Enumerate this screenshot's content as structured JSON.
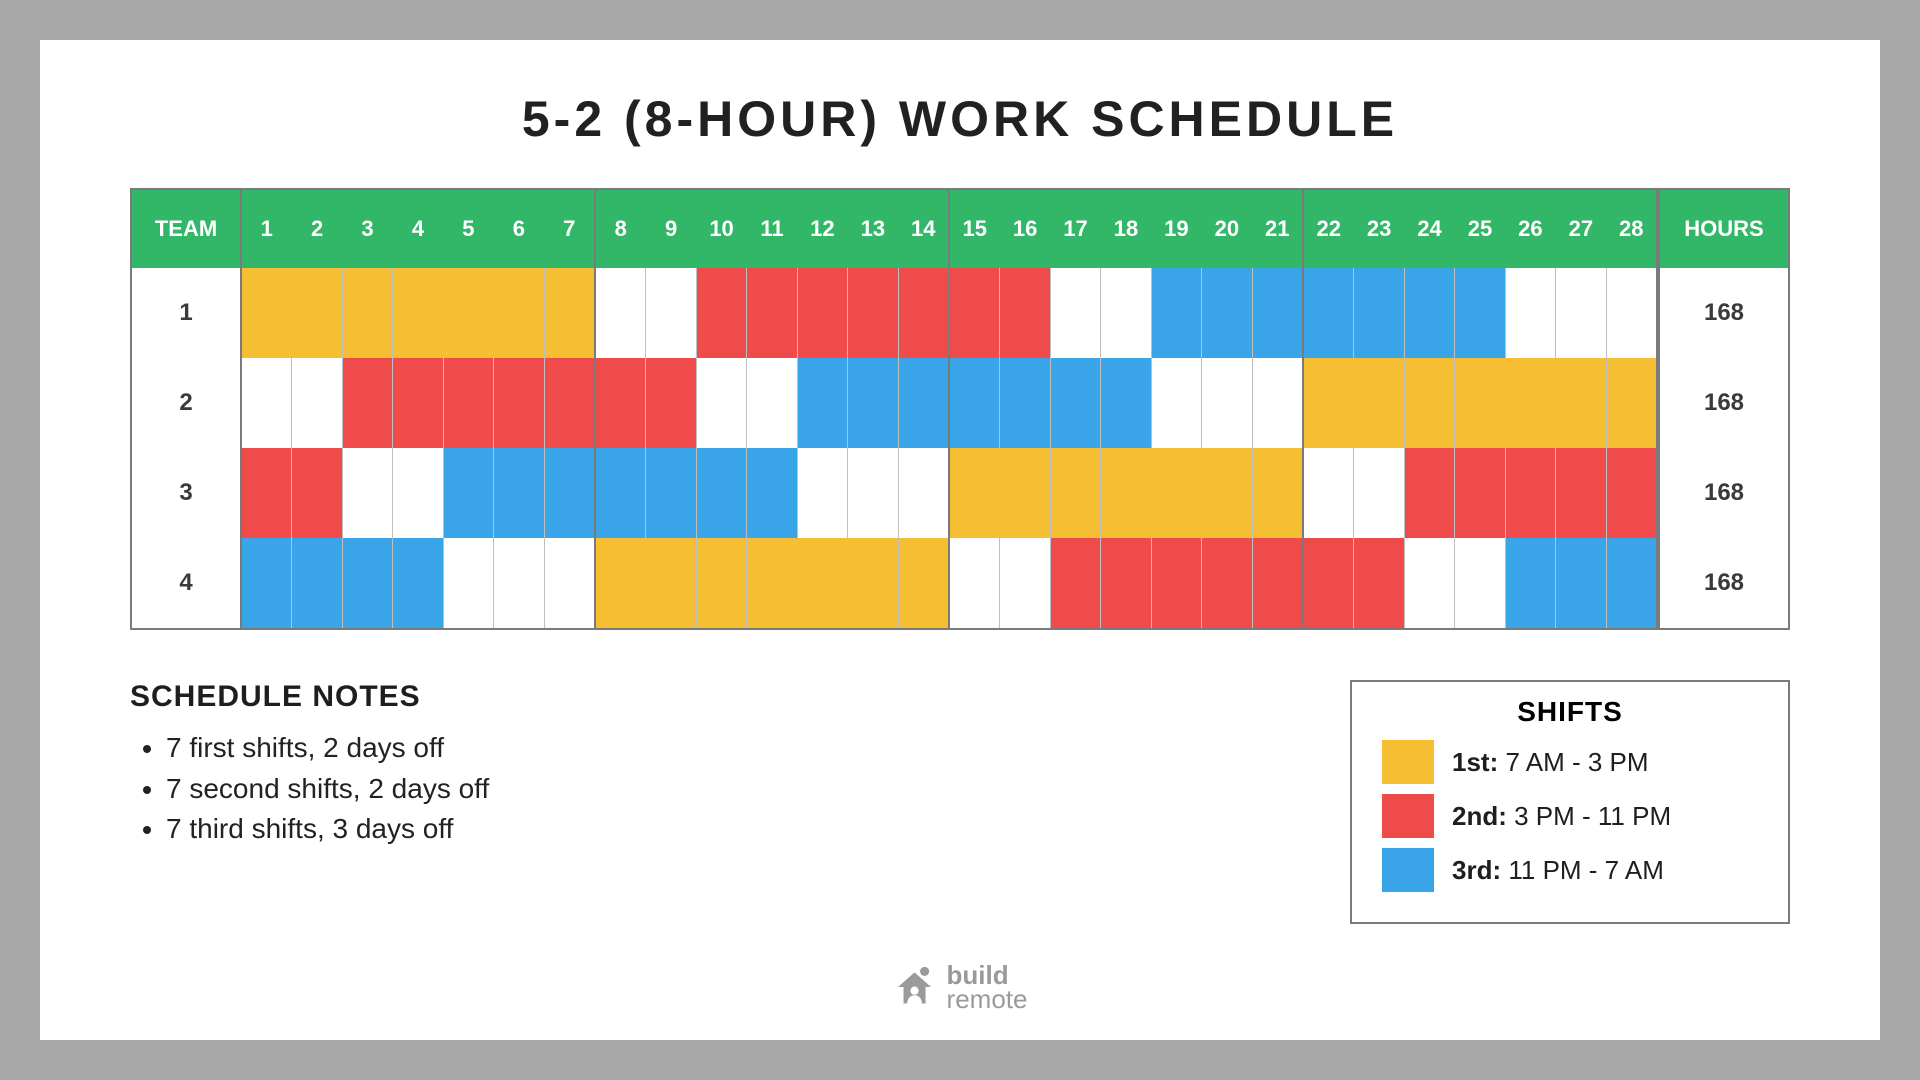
{
  "title": "5-2 (8-HOUR) WORK SCHEDULE",
  "colors": {
    "page_bg": "#a8a8a8",
    "canvas_bg": "#ffffff",
    "header_bg": "#32b768",
    "border": "#7a7a7a",
    "cell_border": "#bfbfbf",
    "text": "#1e1e1e",
    "shift_1": "#f6bf33",
    "shift_2": "#ef4b4b",
    "shift_3": "#3aa4e8",
    "off": "#ffffff",
    "logo": "#9a9a9a"
  },
  "table": {
    "header": {
      "team": "TEAM",
      "hours": "HOURS",
      "days": [
        1,
        2,
        3,
        4,
        5,
        6,
        7,
        8,
        9,
        10,
        11,
        12,
        13,
        14,
        15,
        16,
        17,
        18,
        19,
        20,
        21,
        22,
        23,
        24,
        25,
        26,
        27,
        28
      ],
      "weeks": [
        [
          1,
          2,
          3,
          4,
          5,
          6,
          7
        ],
        [
          8,
          9,
          10,
          11,
          12,
          13,
          14
        ],
        [
          15,
          16,
          17,
          18,
          19,
          20,
          21
        ],
        [
          22,
          23,
          24,
          25,
          26,
          27,
          28
        ]
      ]
    },
    "rows": [
      {
        "team": "1",
        "hours": "168",
        "shifts": [
          1,
          1,
          1,
          1,
          1,
          1,
          1,
          0,
          0,
          2,
          2,
          2,
          2,
          2,
          2,
          2,
          0,
          0,
          3,
          3,
          3,
          3,
          3,
          3,
          3,
          0,
          0,
          0
        ]
      },
      {
        "team": "2",
        "hours": "168",
        "shifts": [
          0,
          0,
          2,
          2,
          2,
          2,
          2,
          2,
          2,
          0,
          0,
          3,
          3,
          3,
          3,
          3,
          3,
          3,
          0,
          0,
          0,
          1,
          1,
          1,
          1,
          1,
          1,
          1
        ]
      },
      {
        "team": "3",
        "hours": "168",
        "shifts": [
          2,
          2,
          0,
          0,
          3,
          3,
          3,
          3,
          3,
          3,
          3,
          0,
          0,
          0,
          1,
          1,
          1,
          1,
          1,
          1,
          1,
          0,
          0,
          2,
          2,
          2,
          2,
          2
        ]
      },
      {
        "team": "4",
        "hours": "168",
        "shifts": [
          3,
          3,
          3,
          3,
          0,
          0,
          0,
          1,
          1,
          1,
          1,
          1,
          1,
          1,
          0,
          0,
          2,
          2,
          2,
          2,
          2,
          2,
          2,
          0,
          0,
          3,
          3,
          3
        ]
      }
    ]
  },
  "notes": {
    "title": "SCHEDULE NOTES",
    "items": [
      "7 first shifts, 2 days off",
      "7 second shifts, 2 days off",
      "7 third shifts, 3 days off"
    ]
  },
  "legend": {
    "title": "SHIFTS",
    "items": [
      {
        "name": "1st",
        "time": "7 AM - 3 PM",
        "shift": 1
      },
      {
        "name": "2nd",
        "time": "3 PM - 11 PM",
        "shift": 2
      },
      {
        "name": "3rd",
        "time": "11 PM - 7 AM",
        "shift": 3
      }
    ]
  },
  "logo": {
    "line1": "build",
    "line2": "remote"
  }
}
